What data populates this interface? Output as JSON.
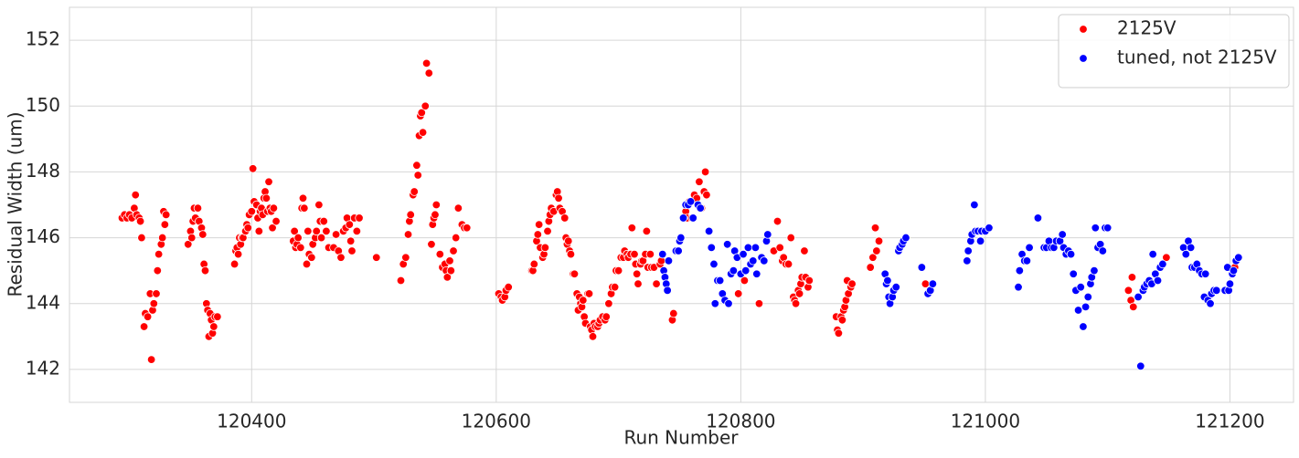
{
  "chart_data": {
    "type": "scatter",
    "x_label": "Run Number",
    "y_label": "Residual Width (um)",
    "xlim": [
      120251,
      121252
    ],
    "ylim": [
      141,
      153
    ],
    "xticks": [
      120400,
      120600,
      120800,
      121000,
      121200
    ],
    "yticks": [
      142,
      144,
      146,
      148,
      150,
      152
    ],
    "grid": true,
    "legend": "upper right",
    "series": [
      {
        "name": "2125V",
        "color": "#ff0000",
        "x": [
          120294,
          120296,
          120298,
          120300,
          120302,
          120304,
          120305,
          120306,
          120308,
          120309,
          120310,
          120312,
          120313,
          120315,
          120317,
          120318,
          120319,
          120320,
          120322,
          120323,
          120324,
          120326,
          120327,
          120328,
          120329,
          120330,
          120348,
          120350,
          120351,
          120352,
          120353,
          120354,
          120356,
          120357,
          120359,
          120360,
          120361,
          120362,
          120363,
          120364,
          120365,
          120366,
          120367,
          120368,
          120369,
          120370,
          120372,
          120386,
          120387,
          120388,
          120389,
          120390,
          120391,
          120392,
          120393,
          120395,
          120396,
          120397,
          120398,
          120400,
          120401,
          120402,
          120404,
          120405,
          120406,
          120407,
          120408,
          120409,
          120410,
          120411,
          120412,
          120413,
          120414,
          120415,
          120416,
          120417,
          120418,
          120420,
          120434,
          120435,
          120436,
          120437,
          120438,
          120440,
          120441,
          120442,
          120443,
          120445,
          120446,
          120447,
          120449,
          120450,
          120452,
          120453,
          120455,
          120456,
          120457,
          120459,
          120461,
          120463,
          120467,
          120469,
          120471,
          120473,
          120475,
          120477,
          120478,
          120480,
          120481,
          120482,
          120484,
          120486,
          120488,
          120502,
          120522,
          120524,
          120526,
          120528,
          120529,
          120530,
          120532,
          120533,
          120535,
          120536,
          120537,
          120538,
          120539,
          120540,
          120542,
          120543,
          120545,
          120547,
          120548,
          120549,
          120550,
          120551,
          120554,
          120556,
          120558,
          120559,
          120560,
          120562,
          120563,
          120565,
          120567,
          120569,
          120572,
          120574,
          120576,
          120602,
          120604,
          120605,
          120607,
          120608,
          120610,
          120629,
          120630,
          120631,
          120633,
          120634,
          120635,
          120636,
          120638,
          120639,
          120640,
          120642,
          120643,
          120644,
          120645,
          120647,
          120649,
          120650,
          120651,
          120652,
          120654,
          120656,
          120657,
          120658,
          120659,
          120660,
          120661,
          120663,
          120664,
          120666,
          120667,
          120668,
          120669,
          120670,
          120671,
          120672,
          120673,
          120675,
          120676,
          120677,
          120678,
          120679,
          120680,
          120681,
          120683,
          120684,
          120685,
          120687,
          120689,
          120690,
          120692,
          120694,
          120695,
          120697,
          120698,
          120700,
          120702,
          120704,
          120705,
          120707,
          120708,
          120710,
          120711,
          120713,
          120714,
          120715,
          120716,
          120718,
          120719,
          120720,
          120722,
          120723,
          120724,
          120726,
          120727,
          120729,
          120731,
          120734,
          120735,
          120744,
          120745,
          120755,
          120756,
          120758,
          120760,
          120762,
          120764,
          120766,
          120768,
          120770,
          120771,
          120772,
          120798,
          120803,
          120815,
          120827,
          120830,
          120832,
          120834,
          120835,
          120837,
          120839,
          120841,
          120843,
          120844,
          120845,
          120847,
          120848,
          120849,
          120850,
          120852,
          120853,
          120855,
          120856,
          120878,
          120879,
          120880,
          120882,
          120883,
          120884,
          120885,
          120886,
          120887,
          120888,
          120890,
          120891,
          120906,
          120908,
          120910,
          120911,
          120913,
          120951,
          121117,
          121119,
          121120,
          121121,
          121148,
          121204
        ],
        "values": [
          146.6,
          146.7,
          146.6,
          146.7,
          146.6,
          146.9,
          147.3,
          146.7,
          146.6,
          146.5,
          146.0,
          143.3,
          143.7,
          143.6,
          144.3,
          142.3,
          143.8,
          144.0,
          144.3,
          145.0,
          145.5,
          145.8,
          146.0,
          146.8,
          146.4,
          146.7,
          145.8,
          146.2,
          146.0,
          146.5,
          146.9,
          146.6,
          146.9,
          146.5,
          146.3,
          146.1,
          145.2,
          145.0,
          144.0,
          143.8,
          143.0,
          143.7,
          143.5,
          143.1,
          143.3,
          143.6,
          143.6,
          145.2,
          145.6,
          145.7,
          145.5,
          146.0,
          145.8,
          146.0,
          146.0,
          146.2,
          146.4,
          146.3,
          146.7,
          146.8,
          148.1,
          147.1,
          147.0,
          146.6,
          146.2,
          146.8,
          146.9,
          146.7,
          147.2,
          147.4,
          147.2,
          146.8,
          147.7,
          146.9,
          146.8,
          146.3,
          146.9,
          146.5,
          145.9,
          146.2,
          145.7,
          145.8,
          146.0,
          145.7,
          146.9,
          147.2,
          146.9,
          145.2,
          146.2,
          145.5,
          145.4,
          145.8,
          146.0,
          146.2,
          147.0,
          146.5,
          146.0,
          146.5,
          146.2,
          145.7,
          145.7,
          146.1,
          145.6,
          145.4,
          146.2,
          146.3,
          146.6,
          146.4,
          145.9,
          145.6,
          146.6,
          146.2,
          146.6,
          145.4,
          144.7,
          145.2,
          145.4,
          146.1,
          146.5,
          146.7,
          147.3,
          147.4,
          148.2,
          147.9,
          149.1,
          149.7,
          149.8,
          149.2,
          150.0,
          151.3,
          151.0,
          145.8,
          146.4,
          146.6,
          146.7,
          147.0,
          145.5,
          145.1,
          145.2,
          145.0,
          144.8,
          145.3,
          145.0,
          145.6,
          146.0,
          146.9,
          146.4,
          146.3,
          146.3,
          144.3,
          144.2,
          144.1,
          144.2,
          144.4,
          144.5,
          145.0,
          145.0,
          145.2,
          145.9,
          146.1,
          146.4,
          145.7,
          145.4,
          145.5,
          145.7,
          146.2,
          146.5,
          146.7,
          146.9,
          146.8,
          147.3,
          147.4,
          147.2,
          146.9,
          146.8,
          146.6,
          146.0,
          145.8,
          145.9,
          145.6,
          145.5,
          144.9,
          144.9,
          144.3,
          143.8,
          144.2,
          144.0,
          143.9,
          144.1,
          143.6,
          143.4,
          144.3,
          144.3,
          143.3,
          143.2,
          143.0,
          143.4,
          143.3,
          143.3,
          143.4,
          143.5,
          143.6,
          143.5,
          143.6,
          144.0,
          144.3,
          144.5,
          144.5,
          145.0,
          145.0,
          145.4,
          145.4,
          145.6,
          145.5,
          145.4,
          145.5,
          146.3,
          145.5,
          145.2,
          144.9,
          144.6,
          145.2,
          145.3,
          145.3,
          145.5,
          146.2,
          145.1,
          145.5,
          145.1,
          145.1,
          144.6,
          145.2,
          145.3,
          143.5,
          143.7,
          146.8,
          146.6,
          147.1,
          146.6,
          147.3,
          147.2,
          147.7,
          146.9,
          147.4,
          148.0,
          147.3,
          144.3,
          144.7,
          144.0,
          145.6,
          146.5,
          145.7,
          145.3,
          145.4,
          145.2,
          145.2,
          146.0,
          144.2,
          144.1,
          144.0,
          144.4,
          144.3,
          144.6,
          144.8,
          145.6,
          144.8,
          144.5,
          144.7,
          143.6,
          143.2,
          143.1,
          143.6,
          143.5,
          143.8,
          143.9,
          144.1,
          144.7,
          144.3,
          144.5,
          144.6,
          145.1,
          145.4,
          146.3,
          145.6,
          145.9,
          144.6,
          144.4,
          144.1,
          144.8,
          143.9,
          145.4,
          145.1
        ]
      },
      {
        "name": "tuned, not 2125V",
        "color": "#0000ff",
        "x": [
          120736,
          120737,
          120738,
          120739,
          120740,
          120741,
          120747,
          120749,
          120750,
          120751,
          120753,
          120755,
          120757,
          120759,
          120761,
          120765,
          120767,
          120774,
          120776,
          120778,
          120779,
          120781,
          120783,
          120785,
          120787,
          120789,
          120790,
          120792,
          120794,
          120795,
          120797,
          120800,
          120802,
          120804,
          120806,
          120808,
          120810,
          120812,
          120813,
          120817,
          120819,
          120821,
          120822,
          120918,
          120919,
          120920,
          120921,
          120922,
          120924,
          120925,
          120927,
          120929,
          120930,
          120932,
          120933,
          120935,
          120948,
          120953,
          120955,
          120957,
          120985,
          120986,
          120988,
          120989,
          120991,
          120992,
          120994,
          120996,
          120997,
          121000,
          121003,
          121027,
          121028,
          121030,
          121032,
          121034,
          121036,
          121043,
          121048,
          121050,
          121052,
          121054,
          121056,
          121058,
          121061,
          121063,
          121064,
          121066,
          121068,
          121070,
          121072,
          121074,
          121076,
          121078,
          121080,
          121082,
          121084,
          121086,
          121087,
          121089,
          121090,
          121092,
          121094,
          121096,
          121098,
          121100,
          121125,
          121127,
          121129,
          121130,
          121132,
          121134,
          121136,
          121137,
          121139,
          121141,
          121143,
          121145,
          121162,
          121164,
          121166,
          121168,
          121169,
          121171,
          121173,
          121175,
          121177,
          121179,
          121180,
          121182,
          121184,
          121185,
          121187,
          121189,
          121196,
          121198,
          121199,
          121200,
          121202,
          121203,
          121205,
          121207
        ],
        "values": [
          145.5,
          145.0,
          144.8,
          144.6,
          144.4,
          145.3,
          145.6,
          145.6,
          145.9,
          146.0,
          146.6,
          147.0,
          147.0,
          147.1,
          146.6,
          147.0,
          146.9,
          146.2,
          145.7,
          145.2,
          144.0,
          144.7,
          144.7,
          144.3,
          144.1,
          145.8,
          144.0,
          144.9,
          145.0,
          145.6,
          145.4,
          144.9,
          145.5,
          145.0,
          145.7,
          145.2,
          145.3,
          145.7,
          144.9,
          145.4,
          145.3,
          145.9,
          146.1,
          144.9,
          144.6,
          144.7,
          144.2,
          144.0,
          144.2,
          144.4,
          144.5,
          145.6,
          145.7,
          145.8,
          145.9,
          146.0,
          145.1,
          144.3,
          144.4,
          144.6,
          145.3,
          145.6,
          145.9,
          146.1,
          147.0,
          146.2,
          146.2,
          145.9,
          146.2,
          146.2,
          146.3,
          144.5,
          145.0,
          145.5,
          145.3,
          145.3,
          145.7,
          146.6,
          145.7,
          145.7,
          145.9,
          145.7,
          145.7,
          145.9,
          145.9,
          146.1,
          145.7,
          145.5,
          145.6,
          145.5,
          144.9,
          144.4,
          143.8,
          144.5,
          143.3,
          143.9,
          144.2,
          144.6,
          144.8,
          145.0,
          146.3,
          145.7,
          145.8,
          145.6,
          146.3,
          146.3,
          144.2,
          142.1,
          144.4,
          144.5,
          144.6,
          144.7,
          144.6,
          145.5,
          144.9,
          144.7,
          145.1,
          145.2,
          145.7,
          145.5,
          145.9,
          145.7,
          145.1,
          145.1,
          145.2,
          145.0,
          144.9,
          144.2,
          144.9,
          144.1,
          144.0,
          144.3,
          144.4,
          144.4,
          144.4,
          145.1,
          144.4,
          144.6,
          144.9,
          145.0,
          145.3,
          145.4
        ]
      }
    ]
  }
}
